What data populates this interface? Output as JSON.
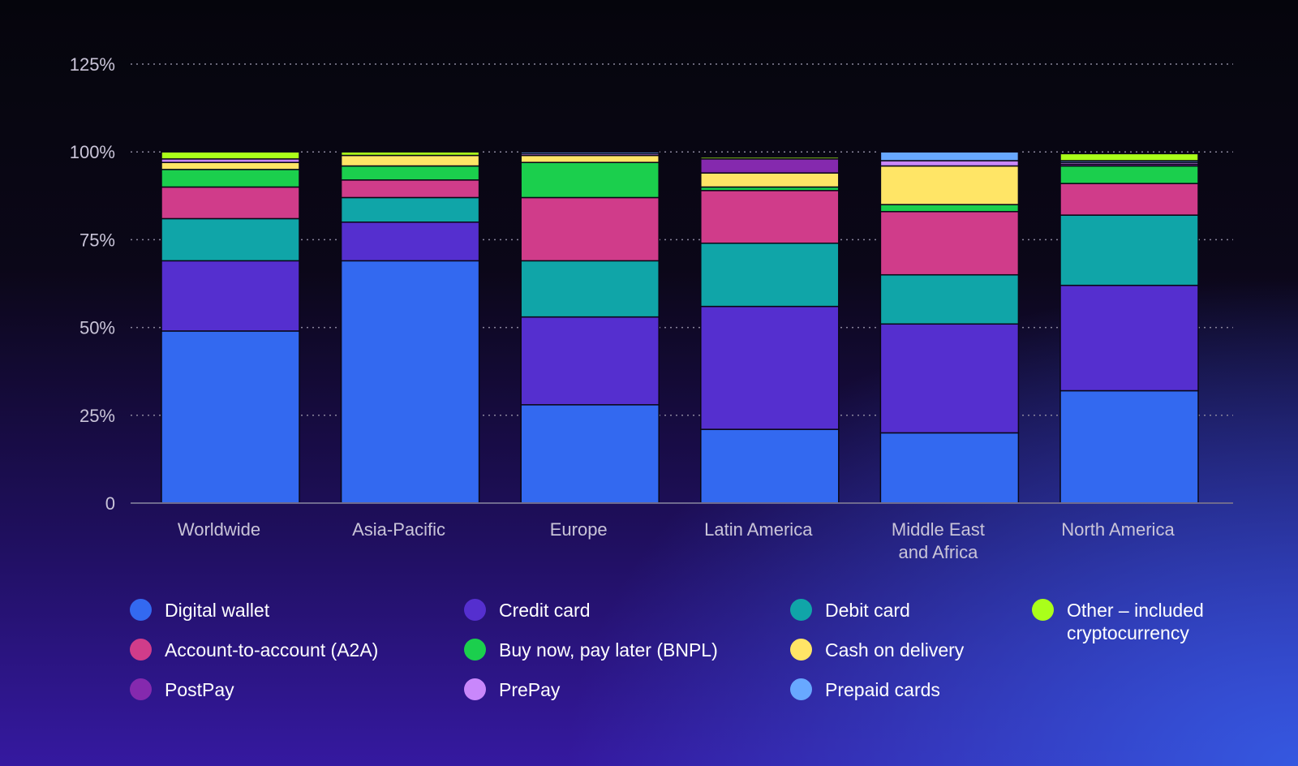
{
  "chart_data": {
    "type": "bar",
    "stacked": true,
    "title": "",
    "xlabel": "",
    "ylabel": "",
    "ylim": [
      0,
      125
    ],
    "yticks": [
      "0",
      "25%",
      "50%",
      "75%",
      "100%",
      "125%"
    ],
    "ytick_values": [
      0,
      25,
      50,
      75,
      100,
      125
    ],
    "grid": true,
    "legend_position": "bottom",
    "categories": [
      "Worldwide",
      "Asia-Pacific",
      "Europe",
      "Latin America",
      "Middle East and Africa",
      "North America"
    ],
    "category_lines": [
      [
        "Worldwide"
      ],
      [
        "Asia-Pacific"
      ],
      [
        "Europe"
      ],
      [
        "Latin America"
      ],
      [
        "Middle East",
        "and Africa"
      ],
      [
        "North America"
      ]
    ],
    "series": [
      {
        "name": "Digital wallet",
        "color": "#3369f0",
        "values": [
          49,
          69,
          28,
          21,
          20,
          32
        ]
      },
      {
        "name": "Credit card",
        "color": "#552fcf",
        "values": [
          20,
          11,
          25,
          35,
          31,
          30
        ]
      },
      {
        "name": "Debit card",
        "color": "#10a5a8",
        "values": [
          12,
          7,
          16,
          18,
          14,
          20
        ]
      },
      {
        "name": "Account-to-account (A2A)",
        "color": "#d03c8a",
        "values": [
          9,
          5,
          18,
          15,
          18,
          9
        ]
      },
      {
        "name": "Buy now, pay later (BNPL)",
        "color": "#1bcf4d",
        "values": [
          5,
          4,
          10,
          1,
          2,
          5
        ]
      },
      {
        "name": "Cash on delivery",
        "color": "#ffe566",
        "values": [
          2,
          3,
          2,
          4,
          11,
          0
        ]
      },
      {
        "name": "PostPay",
        "color": "#8529ae",
        "values": [
          0,
          0,
          0,
          4,
          0,
          0.5
        ]
      },
      {
        "name": "PrePay",
        "color": "#c987fb",
        "values": [
          1,
          0,
          0.5,
          0,
          1.5,
          0.5
        ]
      },
      {
        "name": "Prepaid cards",
        "color": "#68a8ff",
        "values": [
          0,
          0,
          0.5,
          0,
          2.5,
          0.5
        ]
      },
      {
        "name": "Other – included cryptocurrency",
        "color": "#aaff1a",
        "values": [
          2,
          1,
          0,
          0.5,
          0,
          2
        ]
      }
    ]
  },
  "legend": [
    {
      "label": "Digital wallet",
      "color": "#3369f0"
    },
    {
      "label": "Credit card",
      "color": "#552fcf"
    },
    {
      "label": "Debit card",
      "color": "#10a5a8"
    },
    {
      "label_lines": [
        "Other – included",
        "cryptocurrency"
      ],
      "color": "#aaff1a"
    },
    {
      "label": "Account-to-account (A2A)",
      "color": "#d03c8a"
    },
    {
      "label": "Buy now, pay later (BNPL)",
      "color": "#1bcf4d"
    },
    {
      "label": "Cash on delivery",
      "color": "#ffe566"
    },
    {
      "label": "PostPay",
      "color": "#8529ae"
    },
    {
      "label": "PrePay",
      "color": "#c987fb"
    },
    {
      "label": "Prepaid cards",
      "color": "#68a8ff"
    }
  ]
}
